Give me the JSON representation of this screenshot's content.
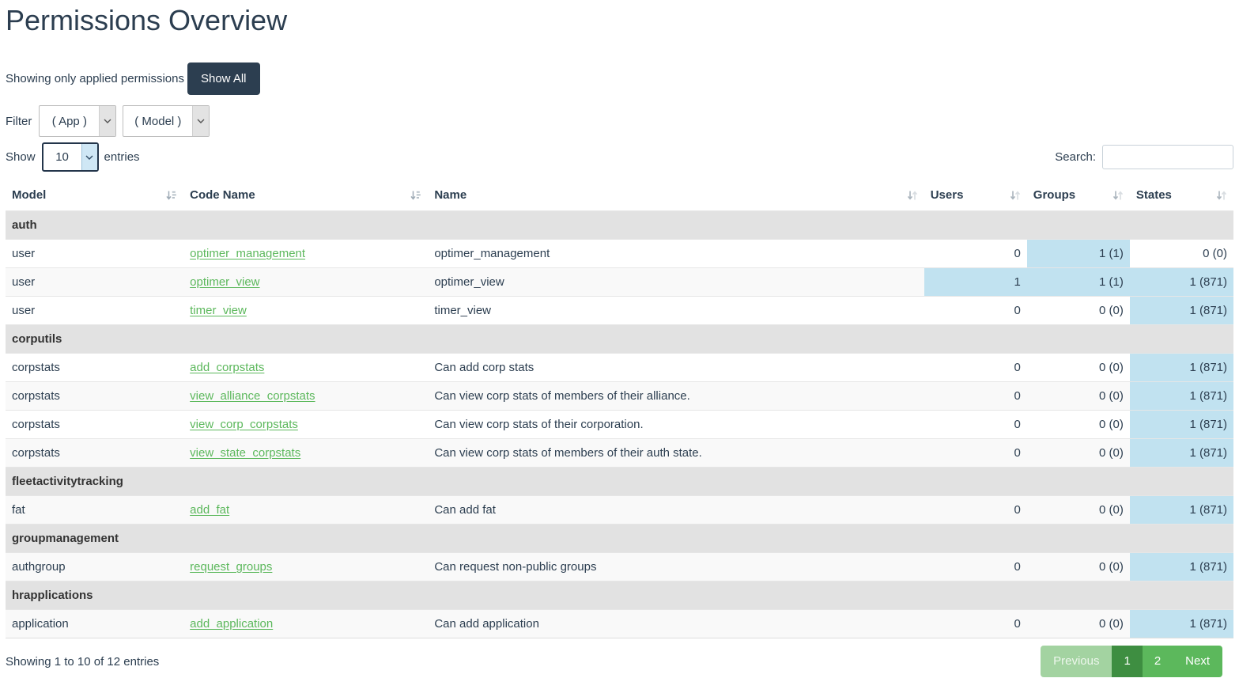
{
  "page": {
    "title": "Permissions Overview"
  },
  "toolbar": {
    "note": "Showing only applied permissions",
    "show_all_label": "Show All"
  },
  "filters": {
    "label": "Filter",
    "app": {
      "value": "( App )"
    },
    "model": {
      "value": "( Model )"
    }
  },
  "length_control": {
    "prefix": "Show",
    "value": "10",
    "suffix": "entries"
  },
  "search": {
    "label": "Search:",
    "value": "",
    "placeholder": ""
  },
  "colors": {
    "accent_dark": "#2c3e50",
    "link_green": "#5cb85c",
    "highlight_blue": "#c1e2f0",
    "group_row_bg": "#e2e2e2",
    "stripe_bg": "#f9f9f9",
    "pagination_active": "#3e8e41",
    "pagination_normal": "#5cb85c",
    "pagination_disabled": "#a3d3a1"
  },
  "table": {
    "columns": [
      {
        "label": "Model",
        "sort_icon": "sort-amount-icon"
      },
      {
        "label": "Code Name",
        "sort_icon": "sort-amount-icon"
      },
      {
        "label": "Name",
        "sort_icon": "sort-both-icon"
      },
      {
        "label": "Users",
        "sort_icon": "sort-both-icon"
      },
      {
        "label": "Groups",
        "sort_icon": "sort-both-icon"
      },
      {
        "label": "States",
        "sort_icon": "sort-both-icon"
      }
    ],
    "groups": [
      {
        "name": "auth",
        "rows": [
          {
            "model": "user",
            "code_name": "optimer_management",
            "name": "optimer_management",
            "users": "0",
            "groups": "1 (1)",
            "states": "0 (0)",
            "highlight": {
              "users": false,
              "groups": true,
              "states": false
            }
          },
          {
            "model": "user",
            "code_name": "optimer_view",
            "name": "optimer_view",
            "users": "1",
            "groups": "1 (1)",
            "states": "1 (871)",
            "highlight": {
              "users": true,
              "groups": true,
              "states": true
            }
          },
          {
            "model": "user",
            "code_name": "timer_view",
            "name": "timer_view",
            "users": "0",
            "groups": "0 (0)",
            "states": "1 (871)",
            "highlight": {
              "users": false,
              "groups": false,
              "states": true
            }
          }
        ]
      },
      {
        "name": "corputils",
        "rows": [
          {
            "model": "corpstats",
            "code_name": "add_corpstats",
            "name": "Can add corp stats",
            "users": "0",
            "groups": "0 (0)",
            "states": "1 (871)",
            "highlight": {
              "users": false,
              "groups": false,
              "states": true
            }
          },
          {
            "model": "corpstats",
            "code_name": "view_alliance_corpstats",
            "name": "Can view corp stats of members of their alliance.",
            "users": "0",
            "groups": "0 (0)",
            "states": "1 (871)",
            "highlight": {
              "users": false,
              "groups": false,
              "states": true
            }
          },
          {
            "model": "corpstats",
            "code_name": "view_corp_corpstats",
            "name": "Can view corp stats of their corporation.",
            "users": "0",
            "groups": "0 (0)",
            "states": "1 (871)",
            "highlight": {
              "users": false,
              "groups": false,
              "states": true
            }
          },
          {
            "model": "corpstats",
            "code_name": "view_state_corpstats",
            "name": "Can view corp stats of members of their auth state.",
            "users": "0",
            "groups": "0 (0)",
            "states": "1 (871)",
            "highlight": {
              "users": false,
              "groups": false,
              "states": true
            }
          }
        ]
      },
      {
        "name": "fleetactivitytracking",
        "rows": [
          {
            "model": "fat",
            "code_name": "add_fat",
            "name": "Can add fat",
            "users": "0",
            "groups": "0 (0)",
            "states": "1 (871)",
            "highlight": {
              "users": false,
              "groups": false,
              "states": true
            }
          }
        ]
      },
      {
        "name": "groupmanagement",
        "rows": [
          {
            "model": "authgroup",
            "code_name": "request_groups",
            "name": "Can request non-public groups",
            "users": "0",
            "groups": "0 (0)",
            "states": "1 (871)",
            "highlight": {
              "users": false,
              "groups": false,
              "states": true
            }
          }
        ]
      },
      {
        "name": "hrapplications",
        "rows": [
          {
            "model": "application",
            "code_name": "add_application",
            "name": "Can add application",
            "users": "0",
            "groups": "0 (0)",
            "states": "1 (871)",
            "highlight": {
              "users": false,
              "groups": false,
              "states": true
            }
          }
        ]
      }
    ]
  },
  "footer": {
    "info": "Showing 1 to 10 of 12 entries",
    "pagination": [
      {
        "label": "Previous",
        "state": "disabled"
      },
      {
        "label": "1",
        "state": "active"
      },
      {
        "label": "2",
        "state": "normal"
      },
      {
        "label": "Next",
        "state": "normal"
      }
    ]
  }
}
